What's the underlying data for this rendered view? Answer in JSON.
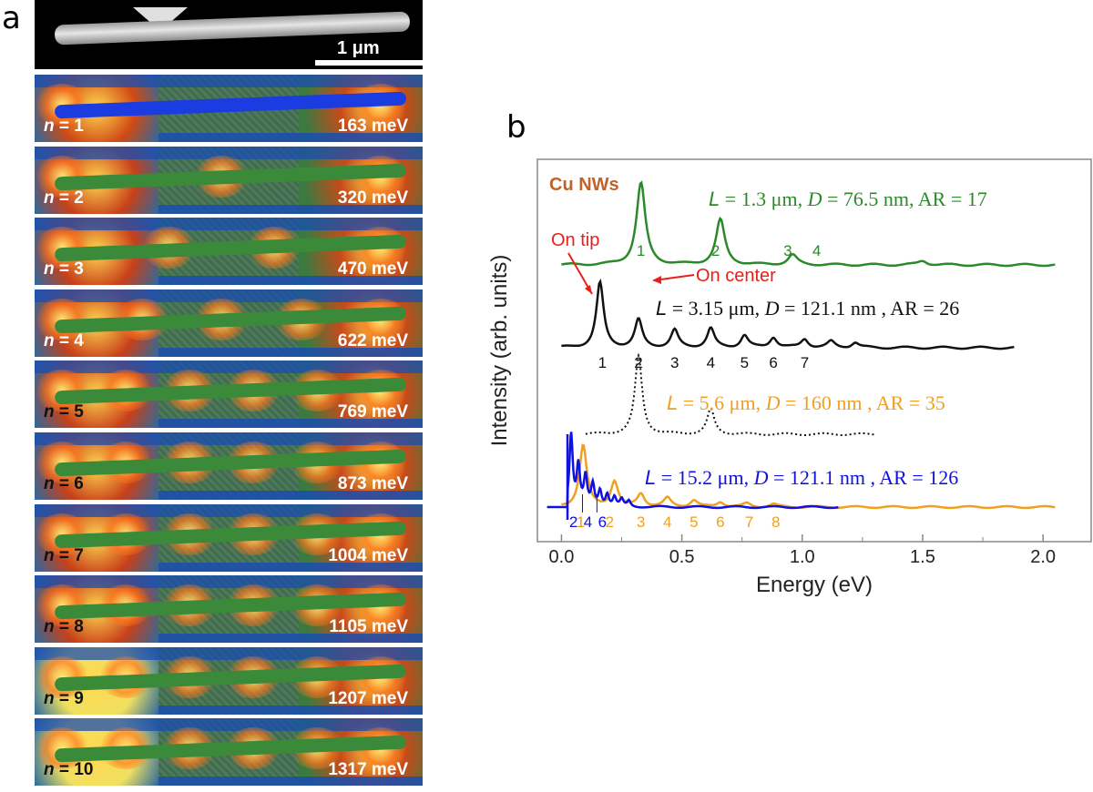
{
  "panel_a": {
    "letter": "a",
    "scale_label": "1 μm",
    "n_prefix": "n",
    "modes": [
      {
        "n": "= 1",
        "energy": "163 meV"
      },
      {
        "n": "= 2",
        "energy": "320 meV"
      },
      {
        "n": "= 3",
        "energy": "470 meV"
      },
      {
        "n": "= 4",
        "energy": "622 meV"
      },
      {
        "n": "= 5",
        "energy": "769 meV"
      },
      {
        "n": "= 6",
        "energy": "873 meV"
      },
      {
        "n": "= 7",
        "energy": "1004 meV"
      },
      {
        "n": "= 8",
        "energy": "1105 meV"
      },
      {
        "n": "= 9",
        "energy": "1207 meV"
      },
      {
        "n": "= 10",
        "energy": "1317 meV"
      }
    ]
  },
  "panel_b": {
    "letter": "b",
    "title": "Cu NWs",
    "annotations": {
      "on_tip": "On tip",
      "on_center": "On center"
    },
    "annotation_color": "#e8201a",
    "title_color": "#c0622a"
  },
  "chart_data": {
    "type": "line",
    "xlabel": "Energy (eV)",
    "ylabel": "Intensity (arb. units)",
    "xlim": [
      -0.1,
      2.2
    ],
    "xticks": [
      0.0,
      0.5,
      1.0,
      1.5,
      2.0
    ],
    "xtick_labels": [
      "0.0",
      "0.5",
      "1.0",
      "1.5",
      "2.0"
    ],
    "legend": "none",
    "series": [
      {
        "name": "L = 1.3 μm, D = 76.5 nm, AR = 17",
        "color": "#2a8a2a",
        "style": "solid",
        "label_parts": [
          "L",
          " = 1.3 μm, ",
          "D",
          " = 76.5 nm, AR = 17"
        ],
        "x_range": [
          0.0,
          2.05
        ],
        "peaks": [
          0.33,
          0.66,
          0.96,
          1.5
        ],
        "amps": [
          1.0,
          0.55,
          0.12,
          0.05
        ],
        "mode_labels": [
          "1",
          "2",
          "3",
          "4"
        ],
        "mode_label_x": [
          0.33,
          0.64,
          0.94,
          1.06
        ]
      },
      {
        "name": "L = 3.15 μm, D = 121.1 nm, AR = 26 (on tip)",
        "color": "#111111",
        "style": "solid",
        "label_parts": [
          "L",
          "  = 3.15 μm, ",
          "D",
          " = 121.1 nm , AR = 26"
        ],
        "x_range": [
          0.0,
          1.88
        ],
        "peaks": [
          0.16,
          0.32,
          0.47,
          0.62,
          0.76,
          0.88,
          1.01,
          1.12,
          1.22
        ],
        "amps": [
          0.75,
          0.32,
          0.2,
          0.22,
          0.14,
          0.12,
          0.1,
          0.07,
          0.06
        ],
        "mode_labels": [
          "1",
          "2",
          "3",
          "4",
          "5",
          "6",
          "7"
        ],
        "mode_label_x": [
          0.17,
          0.32,
          0.47,
          0.62,
          0.76,
          0.88,
          1.01
        ]
      },
      {
        "name": "L = 3.15 μm on center",
        "color": "#111111",
        "style": "dotted",
        "x_range": [
          0.1,
          1.3
        ],
        "peaks": [
          0.32,
          0.62
        ],
        "amps": [
          0.95,
          0.3
        ]
      },
      {
        "name": "L = 5.6 μm, D = 160 nm, AR = 35",
        "color": "#f0a020",
        "style": "solid",
        "label_parts": [
          "L",
          "  = 5.6 μm, ",
          "D",
          " = 160 nm , AR = 35"
        ],
        "x_range": [
          0.0,
          2.05
        ],
        "peaks": [
          0.09,
          0.22,
          0.33,
          0.44,
          0.55,
          0.66,
          0.77,
          0.88
        ],
        "amps": [
          0.85,
          0.35,
          0.18,
          0.12,
          0.09,
          0.07,
          0.05,
          0.04
        ],
        "mode_labels": [
          "1",
          "2",
          "3",
          "4",
          "5",
          "6",
          "7",
          "8"
        ],
        "mode_label_x": [
          0.08,
          0.2,
          0.33,
          0.44,
          0.55,
          0.66,
          0.78,
          0.89
        ]
      },
      {
        "name": "L = 15.2 μm, D = 121.1 nm, AR = 126",
        "color": "#1010e0",
        "style": "solid",
        "label_parts": [
          "L",
          "  = 15.2 μm, ",
          "D",
          " = 121.1 nm , AR = 126"
        ],
        "x_range": [
          -0.06,
          1.15
        ],
        "peaks": [
          0.04,
          0.07,
          0.1,
          0.13,
          0.16,
          0.19,
          0.22,
          0.25,
          0.28
        ],
        "amps": [
          1.0,
          0.55,
          0.4,
          0.3,
          0.22,
          0.17,
          0.13,
          0.1,
          0.08
        ],
        "mode_labels": [
          "2",
          "4",
          "6"
        ],
        "mode_label_x": [
          0.05,
          0.11,
          0.17
        ]
      }
    ]
  }
}
